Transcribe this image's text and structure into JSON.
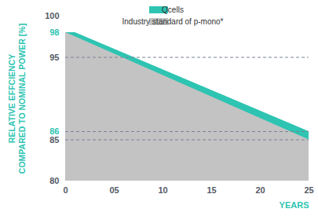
{
  "chart_data": {
    "type": "area",
    "x_label": "YEARS",
    "y_label": "RELATIVE EFFCIENCY COMPARED TO NOMINAL POWER [%]",
    "x": [
      0,
      1,
      25
    ],
    "series": [
      {
        "name": "Qcells",
        "color": "#2ec4b2",
        "values": [
          98,
          98,
          86
        ]
      },
      {
        "name": "Industry standard of p-mono*",
        "color": "#c3c3c3",
        "values": [
          98,
          97.5,
          85
        ]
      }
    ],
    "xlim": [
      0,
      25
    ],
    "xticks": [
      0,
      {
        "value": 5,
        "label": "05"
      },
      10,
      15,
      20,
      25
    ],
    "ylim": [
      80,
      100
    ],
    "yticks": [
      80,
      85,
      86,
      95,
      98,
      100
    ],
    "reference_lines": [
      95,
      86,
      85
    ],
    "legend": "top-right",
    "grid": false
  }
}
